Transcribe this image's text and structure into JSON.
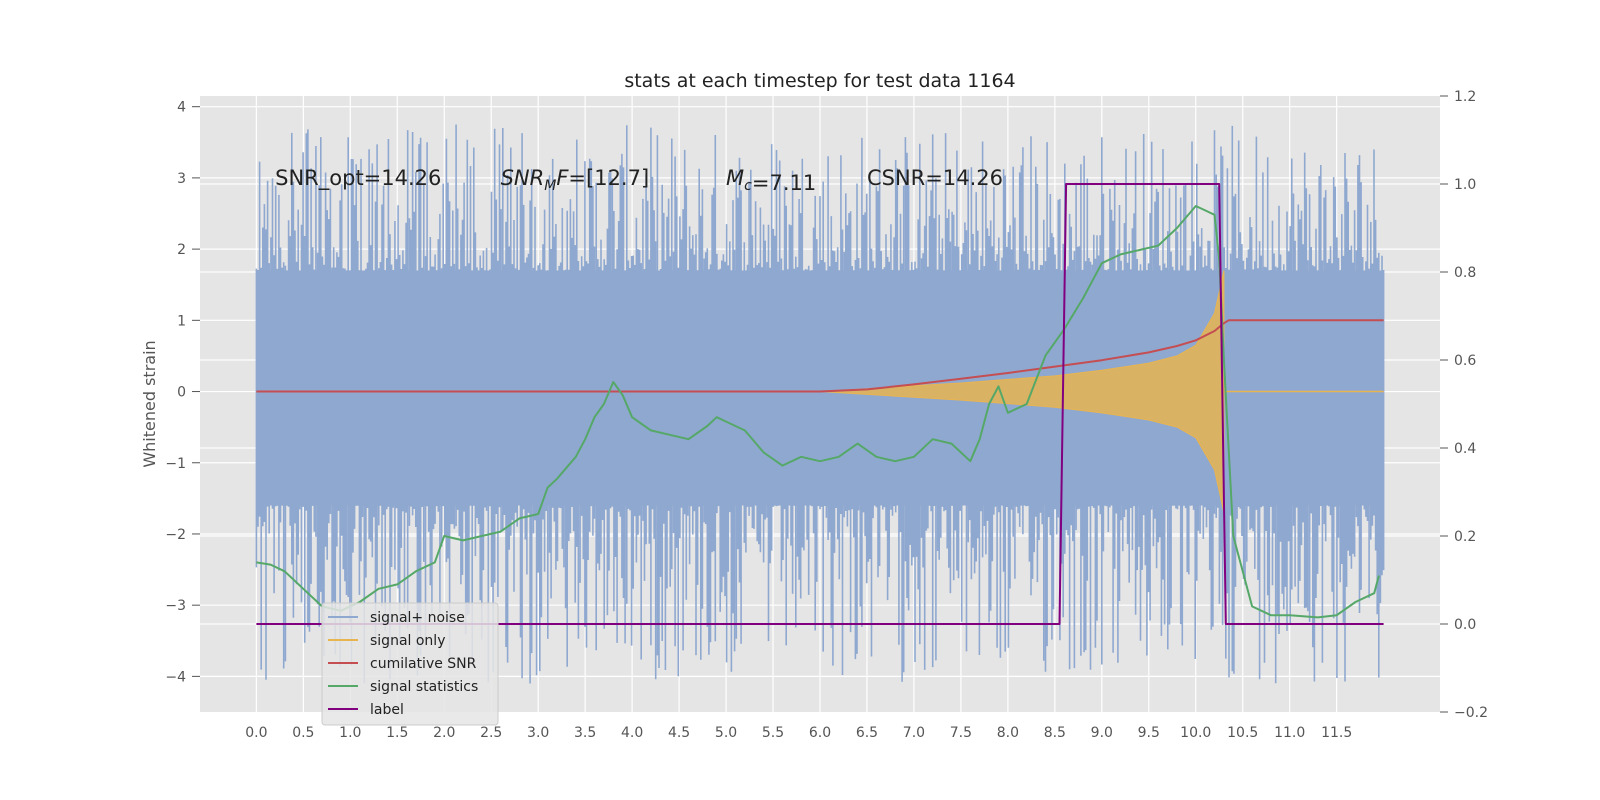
{
  "chart_data": {
    "type": "line",
    "title": "stats at each timestep for test data 1164",
    "ylabel": "Whitened strain",
    "xlabel": "",
    "xlim": [
      -0.6,
      12.6
    ],
    "ylim": [
      -4.5,
      4.15
    ],
    "y2lim": [
      -0.2,
      1.2
    ],
    "x_ticks": [
      "0.0",
      "0.5",
      "1.0",
      "1.5",
      "2.0",
      "2.5",
      "3.0",
      "3.5",
      "4.0",
      "4.5",
      "5.0",
      "5.5",
      "6.0",
      "6.5",
      "7.0",
      "7.5",
      "8.0",
      "8.5",
      "9.0",
      "9.5",
      "10.0",
      "10.5",
      "11.0",
      "11.5"
    ],
    "y_ticks": [
      -4,
      -3,
      -2,
      -1,
      0,
      1,
      2,
      3,
      4
    ],
    "y_tick_labels": [
      "−4",
      "−3",
      "−2",
      "−1",
      "0",
      "1",
      "2",
      "3",
      "4"
    ],
    "y2_ticks": [
      -0.2,
      0.0,
      0.2,
      0.4,
      0.6,
      0.8,
      1.0,
      1.2
    ],
    "y2_tick_labels": [
      "−0.2",
      "0.0",
      "0.2",
      "0.4",
      "0.6",
      "0.8",
      "1.0",
      "1.2"
    ],
    "grid": true,
    "legend_position": "lower-left",
    "annotations": [
      {
        "id": "snr-opt",
        "text": "SNR_opt=14.26",
        "x": 0.2,
        "y": 3.0
      },
      {
        "id": "snr-mf",
        "text": "=[12.7]",
        "math_base": "SNR",
        "math_sub": "M",
        "math_tail": "F",
        "x": 2.6,
        "y": 3.0
      },
      {
        "id": "mc",
        "text": "=7.11",
        "math_base": "M",
        "math_sub": "c",
        "x": 5.0,
        "y": 3.0
      },
      {
        "id": "csnr",
        "text": "CSNR=14.26",
        "x": 6.5,
        "y": 3.0
      }
    ],
    "noise_region": {
      "x_start": 0.0,
      "x_end": 12.0,
      "core_low": -1.6,
      "core_high": 1.7,
      "spike_min": -4.1,
      "spike_max": 3.75
    },
    "series": [
      {
        "name": "signal+ noise",
        "color": "#8fa8d0",
        "axis": "left",
        "style": "dense-noise"
      },
      {
        "name": "signal only",
        "color": "#e8b450",
        "axis": "left",
        "style": "envelope",
        "x": [
          6.0,
          6.5,
          7.0,
          7.5,
          8.0,
          8.5,
          9.0,
          9.5,
          9.8,
          10.0,
          10.2,
          10.3
        ],
        "upper": [
          0.0,
          0.04,
          0.08,
          0.12,
          0.17,
          0.22,
          0.3,
          0.4,
          0.5,
          0.65,
          1.1,
          1.7
        ],
        "lower": [
          0.0,
          -0.04,
          -0.08,
          -0.12,
          -0.17,
          -0.22,
          -0.3,
          -0.4,
          -0.5,
          -0.65,
          -1.1,
          -1.7
        ],
        "tail_x": [
          10.3,
          12.0
        ],
        "tail_y": [
          0.0,
          0.0
        ]
      },
      {
        "name": "cumilative SNR",
        "color": "#c44e52",
        "axis": "left",
        "style": "line",
        "x": [
          0.0,
          6.0,
          6.5,
          7.0,
          7.5,
          8.0,
          8.5,
          9.0,
          9.5,
          9.8,
          10.0,
          10.2,
          10.3,
          10.35,
          12.0
        ],
        "y": [
          0.0,
          0.0,
          0.03,
          0.1,
          0.18,
          0.26,
          0.35,
          0.44,
          0.55,
          0.64,
          0.72,
          0.85,
          0.96,
          1.0,
          1.0
        ]
      },
      {
        "name": "signal statistics",
        "color": "#55a868",
        "axis": "right",
        "style": "line",
        "x": [
          0.0,
          0.15,
          0.3,
          0.5,
          0.7,
          0.9,
          1.1,
          1.3,
          1.5,
          1.7,
          1.9,
          2.0,
          2.2,
          2.4,
          2.6,
          2.8,
          3.0,
          3.1,
          3.2,
          3.4,
          3.5,
          3.6,
          3.7,
          3.8,
          3.9,
          4.0,
          4.2,
          4.4,
          4.6,
          4.8,
          4.9,
          5.0,
          5.2,
          5.4,
          5.6,
          5.8,
          6.0,
          6.2,
          6.4,
          6.6,
          6.8,
          7.0,
          7.2,
          7.4,
          7.6,
          7.7,
          7.8,
          7.9,
          8.0,
          8.2,
          8.4,
          8.6,
          8.8,
          9.0,
          9.2,
          9.4,
          9.6,
          9.8,
          10.0,
          10.1,
          10.2,
          10.25,
          10.3,
          10.4,
          10.6,
          10.8,
          11.0,
          11.3,
          11.5,
          11.7,
          11.9,
          11.95
        ],
        "y": [
          0.14,
          0.135,
          0.12,
          0.08,
          0.04,
          0.03,
          0.05,
          0.08,
          0.09,
          0.12,
          0.14,
          0.2,
          0.19,
          0.2,
          0.21,
          0.24,
          0.25,
          0.31,
          0.33,
          0.38,
          0.42,
          0.47,
          0.5,
          0.55,
          0.52,
          0.47,
          0.44,
          0.43,
          0.42,
          0.45,
          0.47,
          0.46,
          0.44,
          0.39,
          0.36,
          0.38,
          0.37,
          0.38,
          0.41,
          0.38,
          0.37,
          0.38,
          0.42,
          0.41,
          0.37,
          0.42,
          0.5,
          0.54,
          0.48,
          0.5,
          0.61,
          0.67,
          0.74,
          0.82,
          0.84,
          0.85,
          0.86,
          0.9,
          0.95,
          0.94,
          0.93,
          0.83,
          0.6,
          0.2,
          0.04,
          0.02,
          0.02,
          0.015,
          0.02,
          0.05,
          0.07,
          0.11
        ]
      },
      {
        "name": "label",
        "color": "#800080",
        "axis": "right",
        "style": "line",
        "x": [
          0.0,
          8.55,
          8.62,
          10.25,
          10.32,
          12.0
        ],
        "y": [
          0.0,
          0.0,
          1.0,
          1.0,
          0.0,
          0.0
        ]
      }
    ]
  },
  "legend": {
    "items": [
      {
        "label": "signal+ noise",
        "color": "#8fa8d0"
      },
      {
        "label": "signal only",
        "color": "#e8b450"
      },
      {
        "label": "cumilative SNR",
        "color": "#c44e52"
      },
      {
        "label": "signal statistics",
        "color": "#55a868"
      },
      {
        "label": "label",
        "color": "#800080"
      }
    ]
  },
  "colors": {
    "background": "#e5e5e5",
    "grid": "#ffffff"
  }
}
